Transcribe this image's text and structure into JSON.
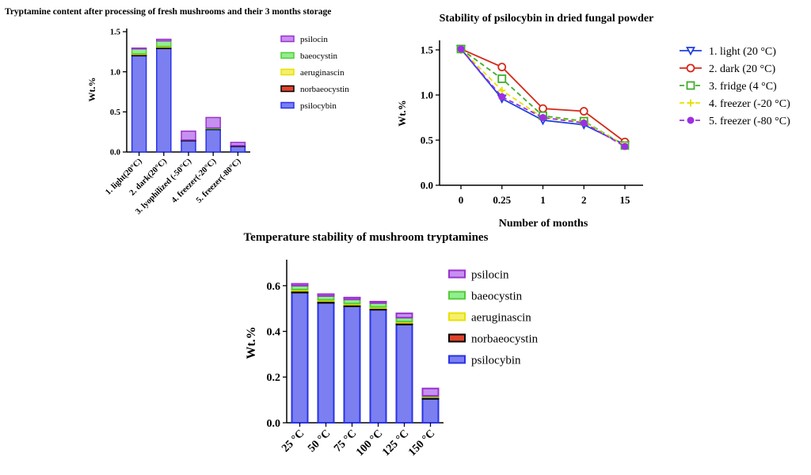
{
  "chart_data": [
    {
      "type": "bar",
      "stacked": true,
      "title": "Tryptamine content after processing of fresh mushrooms and their 3 months storage",
      "xlabel": "",
      "ylabel": "Wt.%",
      "ylim": [
        0,
        1.5
      ],
      "yticks": [
        "0.0",
        "0.5",
        "1.0",
        "1.5"
      ],
      "categories": [
        "1. light(20°C)",
        "2. dark(20°C)",
        "3. lyophilized (-50°C)",
        "4. freezer(-20°C)",
        "5. freezer(-80°C)"
      ],
      "legend_position": "right",
      "series": [
        {
          "name": "psilocybin",
          "color": "#7b7ff0",
          "edge": "#2a33e6",
          "values": [
            1.2,
            1.29,
            0.14,
            0.28,
            0.07
          ]
        },
        {
          "name": "norbaeocystin",
          "color": "#e0432a",
          "edge": "#000000",
          "values": [
            0.02,
            0.02,
            0.01,
            0.01,
            0.01
          ]
        },
        {
          "name": "aeruginascin",
          "color": "#f5f06a",
          "edge": "#e8e000",
          "values": [
            0.005,
            0.005,
            0.0,
            0.0,
            0.0
          ]
        },
        {
          "name": "baeocystin",
          "color": "#90ee90",
          "edge": "#55cc33",
          "values": [
            0.06,
            0.07,
            0.0,
            0.01,
            0.0
          ]
        },
        {
          "name": "psilocin",
          "color": "#c690f0",
          "edge": "#9933cc",
          "values": [
            0.01,
            0.02,
            0.11,
            0.13,
            0.04
          ]
        }
      ],
      "legend_order": [
        "psilocin",
        "baeocystin",
        "aeruginascin",
        "norbaeocystin",
        "psilocybin"
      ]
    },
    {
      "type": "line",
      "title": "Stability of psilocybin in dried fungal powder",
      "xlabel": "Number of months",
      "ylabel": "Wt.%",
      "ylim": [
        0,
        1.5
      ],
      "yticks": [
        "0.0",
        "0.5",
        "1.0",
        "1.5"
      ],
      "x": [
        "0",
        "0.25",
        "1",
        "2",
        "15"
      ],
      "legend_position": "right",
      "series": [
        {
          "name": "1. light (20 °C)",
          "color": "#1f3fe0",
          "marker": "triangle-down",
          "dash": "",
          "values": [
            1.51,
            0.96,
            0.72,
            0.67,
            0.45
          ]
        },
        {
          "name": "2. dark (20 °C)",
          "color": "#d42a1a",
          "marker": "circle",
          "dash": "",
          "values": [
            1.51,
            1.31,
            0.85,
            0.82,
            0.48
          ]
        },
        {
          "name": "3. fridge (4 °C)",
          "color": "#3fae2a",
          "marker": "square",
          "dash": "6,4",
          "values": [
            1.51,
            1.18,
            0.77,
            0.71,
            0.44
          ]
        },
        {
          "name": "4. freezer (-20 °C)",
          "color": "#e8e000",
          "marker": "plus",
          "dash": "6,4",
          "values": [
            1.51,
            1.05,
            0.75,
            0.7,
            0.44
          ]
        },
        {
          "name": "5. freezer (-80 °C)",
          "color": "#9b30e0",
          "marker": "filled-circle",
          "dash": "6,4",
          "values": [
            1.51,
            0.98,
            0.75,
            0.69,
            0.43
          ]
        }
      ]
    },
    {
      "type": "bar",
      "stacked": true,
      "title": "Temperature stability of mushroom tryptamines",
      "xlabel": "",
      "ylabel": "Wt.%",
      "ylim": [
        0,
        0.7
      ],
      "yticks": [
        "0.0",
        "0.2",
        "0.4",
        "0.6"
      ],
      "categories": [
        "25 °C",
        "50 °C",
        "75 °C",
        "100 °C",
        "125 °C",
        "150 °C"
      ],
      "legend_position": "right",
      "series": [
        {
          "name": "psilocybin",
          "color": "#7b7ff0",
          "edge": "#2a33e6",
          "values": [
            0.57,
            0.525,
            0.51,
            0.495,
            0.43,
            0.105
          ]
        },
        {
          "name": "norbaeocystin",
          "color": "#e0432a",
          "edge": "#000000",
          "values": [
            0.008,
            0.008,
            0.007,
            0.007,
            0.008,
            0.008
          ]
        },
        {
          "name": "aeruginascin",
          "color": "#f5f06a",
          "edge": "#e8e000",
          "values": [
            0.005,
            0.005,
            0.005,
            0.005,
            0.005,
            0.002
          ]
        },
        {
          "name": "baeocystin",
          "color": "#90ee90",
          "edge": "#55cc33",
          "values": [
            0.017,
            0.017,
            0.018,
            0.017,
            0.017,
            0.003
          ]
        },
        {
          "name": "psilocin",
          "color": "#c690f0",
          "edge": "#9933cc",
          "values": [
            0.008,
            0.008,
            0.008,
            0.006,
            0.019,
            0.032
          ]
        }
      ],
      "legend_order": [
        "psilocin",
        "baeocystin",
        "aeruginascin",
        "norbaeocystin",
        "psilocybin"
      ]
    }
  ]
}
